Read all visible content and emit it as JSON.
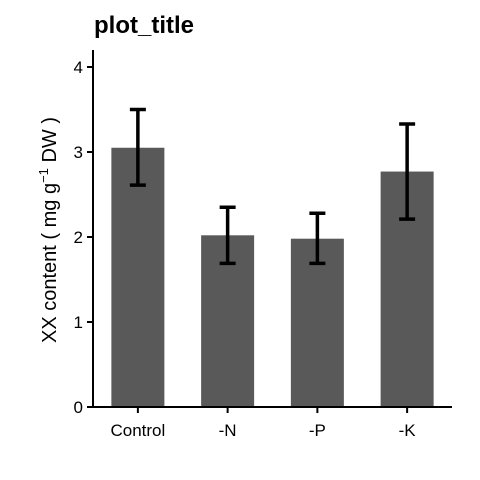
{
  "chart_data": {
    "type": "bar",
    "title": "plot_title",
    "xlabel": "",
    "ylabel": {
      "prefix": "XX content ( mg g",
      "superscript": "−1",
      "suffix": " DW )"
    },
    "categories": [
      "Control",
      "-N",
      "-P",
      "-K"
    ],
    "values": [
      3.05,
      2.02,
      1.98,
      2.77
    ],
    "error_lower": [
      2.61,
      1.69,
      1.69,
      2.21
    ],
    "error_upper": [
      3.5,
      2.35,
      2.28,
      3.33
    ],
    "ylim": [
      0,
      4.2
    ],
    "yticks": [
      0,
      1,
      2,
      3,
      4
    ],
    "grid": false,
    "legend": "none",
    "colors": {
      "bar": "#595959",
      "error_bar": "#000000",
      "axis": "#000000"
    }
  }
}
